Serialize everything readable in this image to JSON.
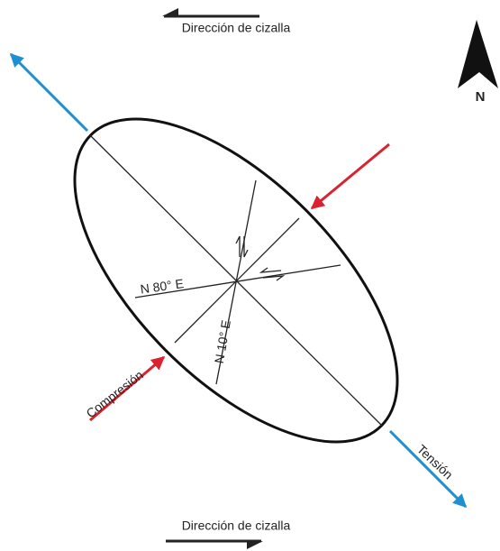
{
  "labels": {
    "shear_top": "Dirección de cizalla",
    "shear_bottom": "Dirección de cizalla",
    "north": "N",
    "plane_a": "N 80° E",
    "plane_b": "N 10° E",
    "compression": "Compresión",
    "tension": "Tensión"
  }
}
